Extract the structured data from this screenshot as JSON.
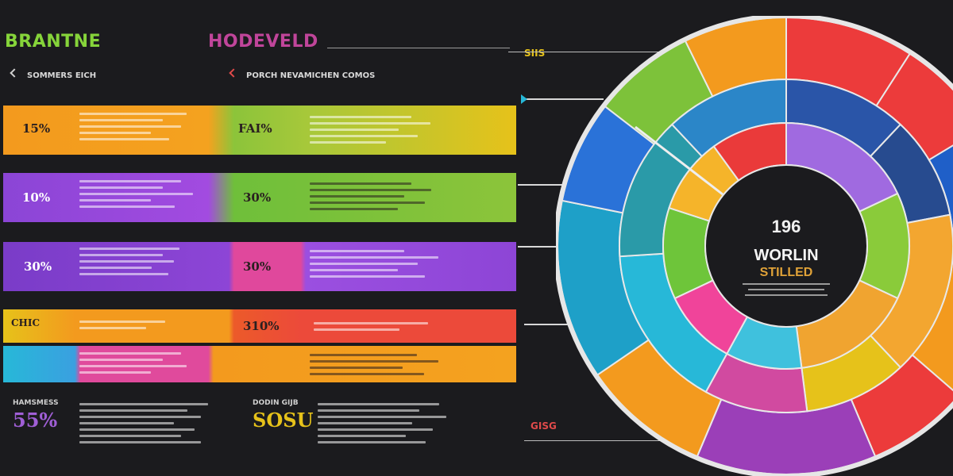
{
  "header": {
    "left_title": "BRANTNE",
    "left_sub": "",
    "center_title": "HODEVELD",
    "center_sub": "",
    "left_subhead": "SOMMERS EICH",
    "center_subhead": "PORCH NEVAMICHEN COMOS",
    "top_tag": "SIIS"
  },
  "colors": {
    "background": "#1b1b1e",
    "orange": "#f39a1e",
    "yellow": "#e6c21a",
    "purple": "#9b4fe0",
    "green": "#7dc23a",
    "red": "#ec4a3a",
    "magenta": "#e04a9c",
    "cyan": "#27b8d8",
    "blue": "#2a72d8"
  },
  "bands": [
    {
      "left_label": "15%",
      "right_label": "FAI%"
    },
    {
      "left_label": "10%",
      "right_label": "30%"
    },
    {
      "left_label": "30%",
      "right_label": "30%"
    },
    {
      "left_label": "CHIC",
      "right_label": "310%"
    },
    {
      "left_label": "",
      "right_label": ""
    }
  ],
  "stats": [
    {
      "label": "HAMSMESS",
      "value": "55%"
    },
    {
      "label": "DODIN GIJB",
      "value": "SOSU"
    }
  ],
  "bottom_tag": "GISG",
  "center": {
    "value": "196",
    "title": "WORLIN",
    "subtitle": "STILLED"
  },
  "chart_data": {
    "type": "pie",
    "title": "WORLIN",
    "subtitle": "STILLED",
    "center_value": "196",
    "rings": [
      {
        "name": "outer",
        "segments": [
          {
            "color": "#ec3b3b",
            "value": 10
          },
          {
            "color": "#ec3b3b",
            "value": 8
          },
          {
            "color": "#1f5fc8",
            "value": 8
          },
          {
            "color": "#f39a1e",
            "value": 14
          },
          {
            "color": "#ec3b3b",
            "value": 8
          },
          {
            "color": "#9b3fb8",
            "value": 14
          },
          {
            "color": "#f39a1e",
            "value": 10
          },
          {
            "color": "#1ea0c8",
            "value": 14
          },
          {
            "color": "#2a72d8",
            "value": 8
          },
          {
            "color": "#7dc23a",
            "value": 8
          },
          {
            "color": "#f39a1e",
            "value": 8
          }
        ]
      },
      {
        "name": "middle",
        "segments": [
          {
            "color": "#2a55a8",
            "value": 12
          },
          {
            "color": "#274b8f",
            "value": 10
          },
          {
            "color": "#f3a630",
            "value": 16
          },
          {
            "color": "#e6c21a",
            "value": 10
          },
          {
            "color": "#d14aa0",
            "value": 10
          },
          {
            "color": "#27b8d8",
            "value": 16
          },
          {
            "color": "#2a9aa8",
            "value": 14
          },
          {
            "color": "#2b86c8",
            "value": 12
          }
        ]
      },
      {
        "name": "inner",
        "segments": [
          {
            "color": "#a06ae0",
            "value": 18
          },
          {
            "color": "#8acb3a",
            "value": 14
          },
          {
            "color": "#f0a430",
            "value": 16
          },
          {
            "color": "#3fc1dd",
            "value": 10
          },
          {
            "color": "#f0449a",
            "value": 10
          },
          {
            "color": "#6ec53a",
            "value": 12
          },
          {
            "color": "#f5b42a",
            "value": 10
          },
          {
            "color": "#ea3a3a",
            "value": 10
          }
        ]
      }
    ]
  }
}
